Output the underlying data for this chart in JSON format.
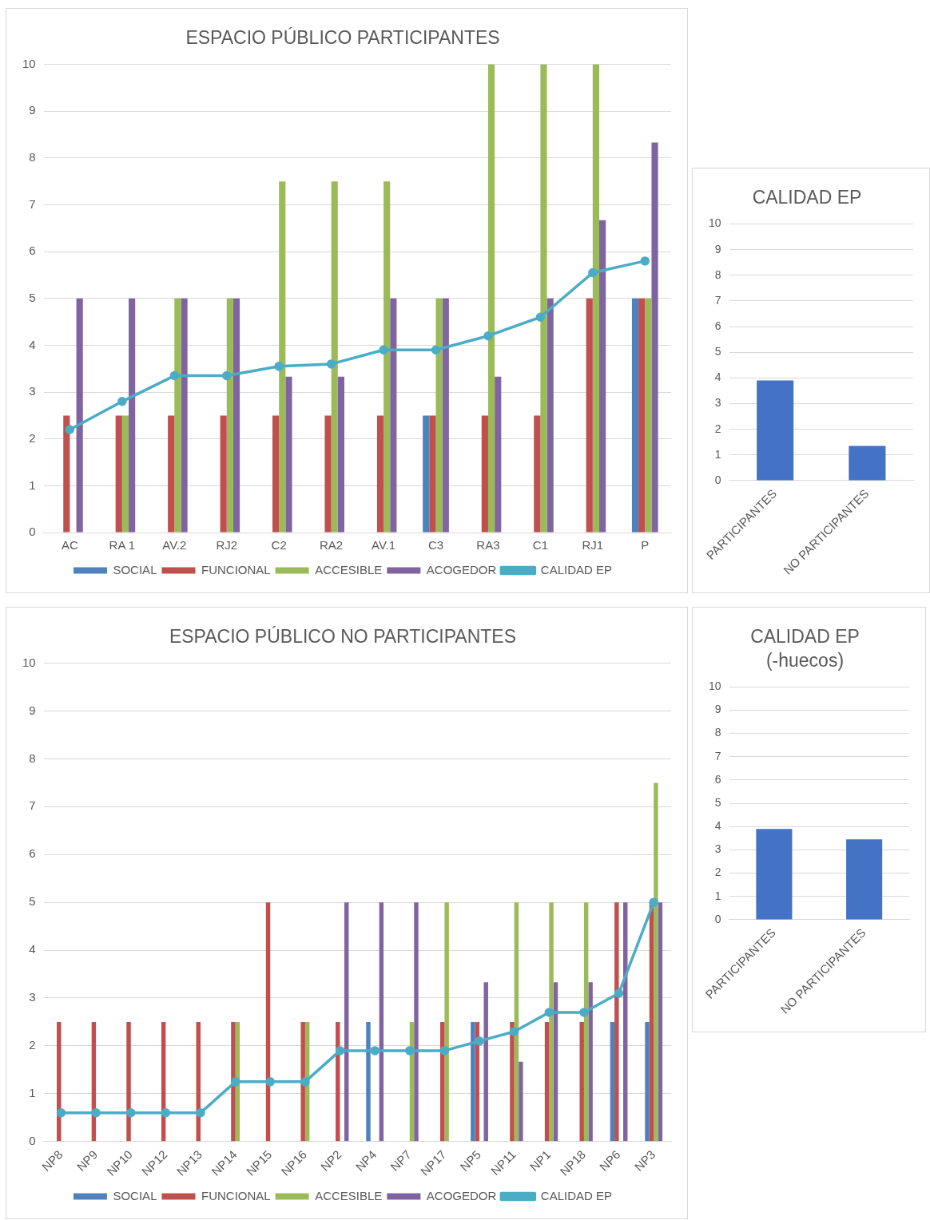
{
  "chart_data": [
    {
      "type": "bar",
      "title": "ESPACIO PÚBLICO PARTICIPANTES",
      "categories": [
        "AC",
        "RA 1",
        "AV.2",
        "RJ2",
        "C2",
        "RA2",
        "AV.1",
        "C3",
        "RA3",
        "C1",
        "RJ1",
        "P"
      ],
      "ylim": [
        0,
        10
      ],
      "yticks": [
        0,
        1,
        2,
        3,
        4,
        5,
        6,
        7,
        8,
        9,
        10
      ],
      "grid": "y",
      "legend": "bottom",
      "marker": "circle",
      "series": [
        {
          "name": "SOCIAL",
          "color": "#4f81bd",
          "values": [
            0,
            0,
            0,
            0,
            0,
            0,
            0,
            2.5,
            0,
            0,
            0,
            5
          ]
        },
        {
          "name": "FUNCIONAL",
          "color": "#c0504d",
          "values": [
            2.5,
            2.5,
            2.5,
            2.5,
            2.5,
            2.5,
            2.5,
            2.5,
            2.5,
            2.5,
            5,
            5
          ]
        },
        {
          "name": "ACCESIBLE",
          "color": "#9bbb59",
          "values": [
            0,
            2.5,
            5,
            5,
            7.5,
            7.5,
            7.5,
            5,
            10,
            10,
            10,
            5
          ]
        },
        {
          "name": "ACOGEDOR",
          "color": "#8064a2",
          "values": [
            5,
            5,
            5,
            5,
            3.33,
            3.33,
            5,
            5,
            3.33,
            5,
            6.67,
            8.33
          ]
        },
        {
          "name": "CALIDAD EP",
          "type": "line",
          "color": "#4bacc6",
          "values": [
            2.2,
            2.8,
            3.35,
            3.35,
            3.55,
            3.6,
            3.9,
            3.9,
            4.2,
            4.6,
            5.55,
            5.8
          ]
        }
      ]
    },
    {
      "type": "bar",
      "title": "CALIDAD EP",
      "categories": [
        "PARTICIPANTES",
        "NO PARTICIPANTES"
      ],
      "values": [
        3.9,
        1.35
      ],
      "color": "#4472c4",
      "ylim": [
        0,
        10
      ],
      "yticks": [
        0,
        1,
        2,
        3,
        4,
        5,
        6,
        7,
        8,
        9,
        10
      ],
      "grid": "y"
    },
    {
      "type": "bar",
      "title": "ESPACIO PÚBLICO NO PARTICIPANTES",
      "categories": [
        "NP8",
        "NP9",
        "NP10",
        "NP12",
        "NP13",
        "NP14",
        "NP15",
        "NP16",
        "NP2",
        "NP4",
        "NP7",
        "NP17",
        "NP5",
        "NP11",
        "NP1",
        "NP18",
        "NP6",
        "NP3"
      ],
      "ylim": [
        0,
        10
      ],
      "yticks": [
        0,
        1,
        2,
        3,
        4,
        5,
        6,
        7,
        8,
        9,
        10
      ],
      "grid": "y",
      "legend": "bottom",
      "marker": "circle",
      "series": [
        {
          "name": "SOCIAL",
          "color": "#4f81bd",
          "values": [
            0,
            0,
            0,
            0,
            0,
            0,
            0,
            0,
            0,
            2.5,
            0,
            0,
            2.5,
            0,
            0,
            0,
            2.5,
            2.5
          ]
        },
        {
          "name": "FUNCIONAL",
          "color": "#c0504d",
          "values": [
            2.5,
            2.5,
            2.5,
            2.5,
            2.5,
            2.5,
            5,
            2.5,
            2.5,
            0,
            0,
            2.5,
            2.5,
            2.5,
            2.5,
            2.5,
            5,
            5
          ]
        },
        {
          "name": "ACCESIBLE",
          "color": "#9bbb59",
          "values": [
            0,
            0,
            0,
            0,
            0,
            2.5,
            0,
            2.5,
            0,
            0,
            2.5,
            5,
            0,
            5,
            5,
            5,
            0,
            7.5
          ]
        },
        {
          "name": "ACOGEDOR",
          "color": "#8064a2",
          "values": [
            0,
            0,
            0,
            0,
            0,
            0,
            0,
            0,
            5,
            5,
            5,
            0,
            3.33,
            1.67,
            3.33,
            3.33,
            5,
            5
          ]
        },
        {
          "name": "CALIDAD EP",
          "type": "line",
          "color": "#4bacc6",
          "values": [
            0.6,
            0.6,
            0.6,
            0.6,
            0.6,
            1.25,
            1.25,
            1.25,
            1.9,
            1.9,
            1.9,
            1.9,
            2.1,
            2.3,
            2.7,
            2.7,
            3.1,
            5
          ]
        }
      ]
    },
    {
      "type": "bar",
      "title": "CALIDAD EP",
      "subtitle": "(-huecos)",
      "categories": [
        "PARTICIPANTES",
        "NO PARTICIPANTES"
      ],
      "values": [
        3.9,
        3.45
      ],
      "color": "#4472c4",
      "ylim": [
        0,
        10
      ],
      "yticks": [
        0,
        1,
        2,
        3,
        4,
        5,
        6,
        7,
        8,
        9,
        10
      ],
      "grid": "y"
    }
  ]
}
